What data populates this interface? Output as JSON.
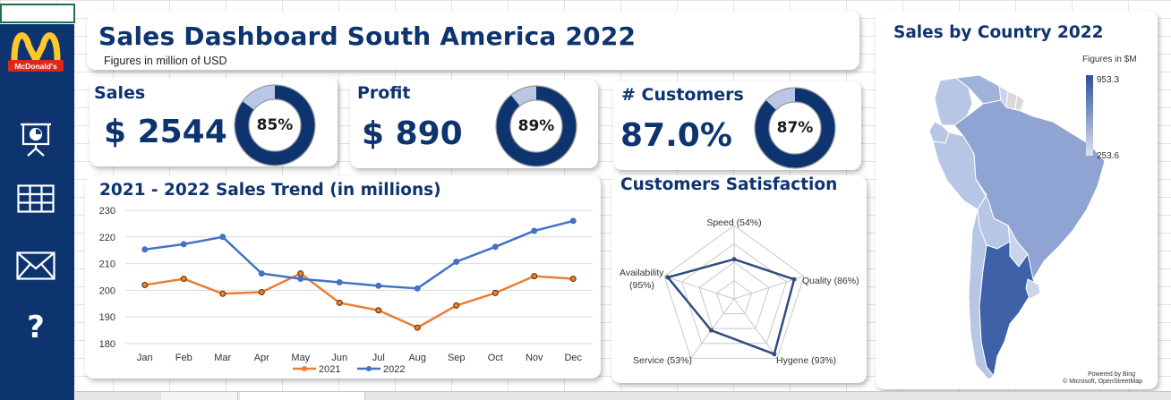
{
  "dashboard": {
    "title": "Sales Dashboard South America 2022",
    "subtitle": "Figures in million of USD",
    "logo_text": "McDonald's",
    "brand_color": "#0e3470",
    "accent_color": "#4472c4"
  },
  "sidebar": {
    "items": [
      {
        "name": "presentation-icon"
      },
      {
        "name": "table-icon"
      },
      {
        "name": "mail-icon"
      },
      {
        "name": "help-icon",
        "glyph": "?"
      }
    ]
  },
  "kpis": [
    {
      "label": "Sales",
      "value": "$ 2544",
      "percent": 85,
      "percent_label": "85%"
    },
    {
      "label": "Profit",
      "value": "$ 890",
      "percent": 89,
      "percent_label": "89%"
    },
    {
      "label": "# Customers",
      "value": "87.0%",
      "percent": 87,
      "percent_label": "87%"
    }
  ],
  "chart_data": [
    {
      "type": "line",
      "title": "2021 - 2022 Sales Trend (in millions)",
      "categories": [
        "Jan",
        "Feb",
        "Mar",
        "Apr",
        "May",
        "Jun",
        "Jul",
        "Aug",
        "Sep",
        "Oct",
        "Nov",
        "Dec"
      ],
      "ylim": [
        180,
        230
      ],
      "yticks": [
        "180",
        "190",
        "200",
        "210",
        "220",
        "230"
      ],
      "grid": true,
      "legend": "bottom",
      "series": [
        {
          "name": "2021",
          "color": "#ed7d31",
          "values": [
            202,
            204.3,
            198.7,
            199.3,
            206.3,
            195.3,
            192.5,
            186,
            194.3,
            199,
            205.3,
            204.3
          ]
        },
        {
          "name": "2022",
          "color": "#4472c4",
          "values": [
            215.3,
            217.3,
            220,
            206.3,
            204.3,
            203,
            201.7,
            200.7,
            210.7,
            216.3,
            222.3,
            226
          ]
        }
      ]
    },
    {
      "type": "radar",
      "title": "Customers Satisfaction",
      "axes": [
        "Speed (54%)",
        "Quality (86%)",
        "Hygene (93%)",
        "Service (53%)",
        "Availability (95%)"
      ],
      "values": [
        54,
        86,
        93,
        53,
        95
      ],
      "rmax": 100,
      "color": "#2f4d7e"
    },
    {
      "type": "map",
      "title": "Sales by Country 2022",
      "legend_title": "Figures in $M",
      "legend_max": "953.3",
      "legend_min": "253.6",
      "attribution_1": "Powered by Bing",
      "attribution_2": "© Microsoft, OpenStreetMap"
    }
  ]
}
